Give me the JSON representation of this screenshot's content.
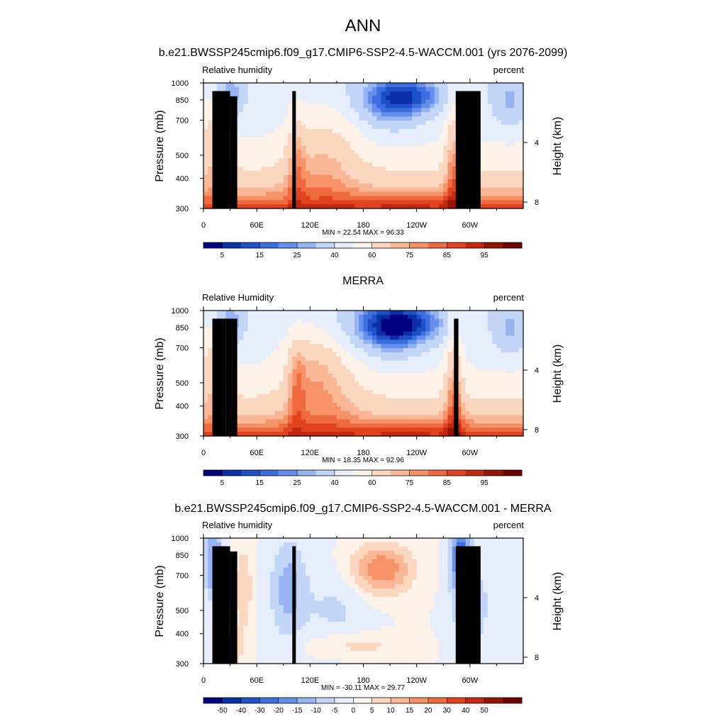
{
  "figure": {
    "season": "ANN",
    "panels": [
      {
        "title": "b.e21.BWSSP245cmip6.f09_g17.CMIP6-SSP2-4.5-WACCM.001 (yrs 2076-2099)",
        "left_label": "Relative humidity",
        "right_label": "percent",
        "stats": "MIN = 22.54  MAX = 96.33"
      },
      {
        "title": "MERRA",
        "left_label": "Relative Humidity",
        "right_label": "percent",
        "stats": "MIN = 18.35  MAX = 92.96"
      },
      {
        "title": "b.e21.BWSSP245cmip6.f09_g17.CMIP6-SSP2-4.5-WACCM.001 - MERRA",
        "left_label": "Relative humidity",
        "right_label": "percent",
        "stats": "MIN = -30.11  MAX = 29.77"
      }
    ]
  },
  "chart_data": [
    {
      "type": "heatmap",
      "title": "b.e21.BWSSP245cmip6.f09_g17.CMIP6-SSP2-4.5-WACCM.001 (yrs 2076-2099)",
      "xlabel": "",
      "ylabel": "Pressure (mb)",
      "y2label": "Height (km)",
      "x_ticks": [
        "0",
        "60E",
        "120E",
        "180",
        "120W",
        "60W"
      ],
      "x_tick_values": [
        0,
        60,
        120,
        180,
        240,
        300
      ],
      "xlim": [
        0,
        360
      ],
      "y_ticks": [
        "300",
        "400",
        "500",
        "700",
        "850",
        "1000"
      ],
      "y_tick_values": [
        300,
        400,
        500,
        700,
        850,
        1000
      ],
      "ylim": [
        1000,
        300
      ],
      "y2_ticks": [
        "8",
        "4"
      ],
      "y2_tick_values": [
        8,
        4
      ],
      "colorbar_labels": [
        "5",
        "15",
        "25",
        "40",
        "60",
        "75",
        "85",
        "95"
      ],
      "colorbar_colors": [
        "#000080",
        "#0a2fa6",
        "#1e50c8",
        "#3c6ee0",
        "#6490ec",
        "#96b4f2",
        "#c3d6f8",
        "#e6eefb",
        "#fdf2e8",
        "#fbd7c0",
        "#f9b796",
        "#f69268",
        "#f06a40",
        "#e0431e",
        "#c02810",
        "#961405",
        "#6e0000"
      ],
      "stats": {
        "min": 22.54,
        "max": 96.33
      },
      "masked_columns": [
        [
          10,
          30
        ],
        [
          30,
          38
        ],
        [
          100,
          104
        ],
        [
          284,
          312
        ]
      ]
    },
    {
      "type": "heatmap",
      "title": "MERRA",
      "xlabel": "",
      "ylabel": "Pressure (mb)",
      "y2label": "Height (km)",
      "x_ticks": [
        "0",
        "60E",
        "120E",
        "180",
        "120W",
        "60W"
      ],
      "x_tick_values": [
        0,
        60,
        120,
        180,
        240,
        300
      ],
      "xlim": [
        0,
        360
      ],
      "y_ticks": [
        "300",
        "400",
        "500",
        "700",
        "850",
        "1000"
      ],
      "y_tick_values": [
        300,
        400,
        500,
        700,
        850,
        1000
      ],
      "ylim": [
        1000,
        300
      ],
      "y2_ticks": [
        "8",
        "4"
      ],
      "y2_tick_values": [
        8,
        4
      ],
      "colorbar_labels": [
        "5",
        "15",
        "25",
        "40",
        "60",
        "75",
        "85",
        "95"
      ],
      "colorbar_colors": [
        "#000080",
        "#0a2fa6",
        "#1e50c8",
        "#3c6ee0",
        "#6490ec",
        "#96b4f2",
        "#c3d6f8",
        "#e6eefb",
        "#fdf2e8",
        "#fbd7c0",
        "#f9b796",
        "#f69268",
        "#f06a40",
        "#e0431e",
        "#c02810",
        "#961405",
        "#6e0000"
      ],
      "stats": {
        "min": 18.35,
        "max": 92.96
      },
      "masked_columns": [
        [
          10,
          25
        ],
        [
          25,
          32
        ],
        [
          32,
          38
        ],
        [
          282,
          287
        ]
      ]
    },
    {
      "type": "heatmap",
      "title": "b.e21.BWSSP245cmip6.f09_g17.CMIP6-SSP2-4.5-WACCM.001 - MERRA",
      "xlabel": "",
      "ylabel": "Pressure (mb)",
      "y2label": "Height (km)",
      "x_ticks": [
        "0",
        "60E",
        "120E",
        "180",
        "120W",
        "60W"
      ],
      "x_tick_values": [
        0,
        60,
        120,
        180,
        240,
        300
      ],
      "xlim": [
        0,
        360
      ],
      "y_ticks": [
        "300",
        "400",
        "500",
        "700",
        "850",
        "1000"
      ],
      "y_tick_values": [
        300,
        400,
        500,
        700,
        850,
        1000
      ],
      "ylim": [
        1000,
        300
      ],
      "y2_ticks": [
        "8",
        "4"
      ],
      "y2_tick_values": [
        8,
        4
      ],
      "colorbar_labels": [
        "-50",
        "-40",
        "-30",
        "-20",
        "-15",
        "-10",
        "-5",
        "0",
        "5",
        "10",
        "15",
        "20",
        "30",
        "40",
        "50"
      ],
      "colorbar_colors": [
        "#000080",
        "#0a2fa6",
        "#1e50c8",
        "#3c6ee0",
        "#6490ec",
        "#96b4f2",
        "#c3d6f8",
        "#e6eefb",
        "#fdf2e8",
        "#fbd7c0",
        "#f9b796",
        "#f69268",
        "#f06a40",
        "#e0431e",
        "#c02810",
        "#961405",
        "#6e0000"
      ],
      "stats": {
        "min": -30.11,
        "max": 29.77
      },
      "masked_columns": [
        [
          10,
          30
        ],
        [
          30,
          38
        ],
        [
          100,
          104
        ],
        [
          284,
          312
        ]
      ]
    }
  ]
}
